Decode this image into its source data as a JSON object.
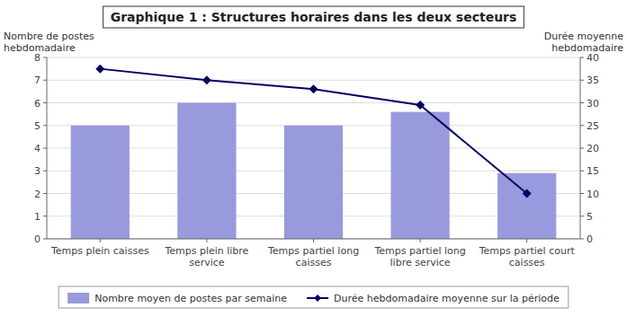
{
  "chart_data": {
    "type": "bar",
    "title": "Graphique 1 : Structures horaires dans les deux secteurs",
    "categories": [
      "Temps plein caisses",
      "Temps plein libre\nservice",
      "Temps partiel long\ncaisses",
      "Temps partiel long\nlibre service",
      "Temps partiel court\ncaisses"
    ],
    "series": [
      {
        "name": "Nombre moyen de postes par semaine",
        "type": "bar",
        "color": "#9999dd",
        "values": [
          5.0,
          6.0,
          5.0,
          5.6,
          2.9
        ]
      },
      {
        "name": "Durée hebdomadaire moyenne sur la période",
        "type": "line",
        "color": "#000066",
        "marker": "diamond",
        "axis": "y2",
        "values": [
          37.5,
          35.0,
          33.0,
          29.5,
          10.0
        ]
      }
    ],
    "ylabel": "Nombre de postes\nhebdomadaire",
    "y2label": "Durée moyenne\nhebdomadaire",
    "ylim": [
      0,
      8
    ],
    "yticks": [
      0,
      1,
      2,
      3,
      4,
      5,
      6,
      7,
      8
    ],
    "y2lim": [
      0,
      40
    ],
    "y2ticks": [
      0,
      5,
      10,
      15,
      20,
      25,
      30,
      35,
      40
    ],
    "grid": true,
    "legend": "bottom"
  }
}
